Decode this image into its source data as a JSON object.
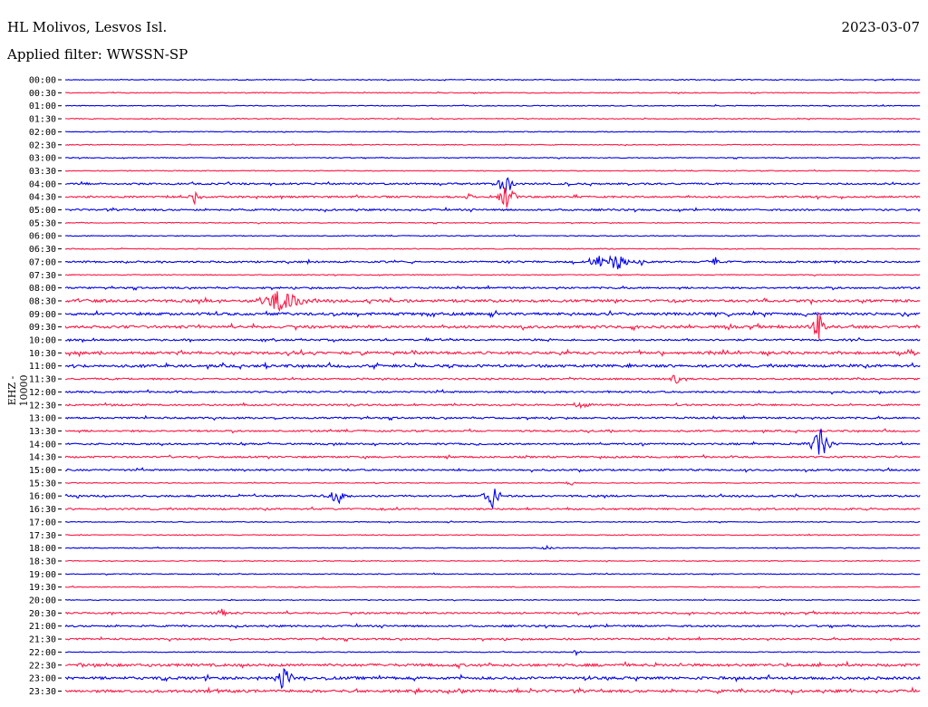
{
  "station": "HL Molivos, Lesvos Isl.",
  "date": "2023-03-07",
  "filter": "Applied filter: WWSSN-SP",
  "ylabel": "EHZ - 10000",
  "colors": {
    "even_trace": "#0000ee",
    "odd_trace": "#ff1744"
  },
  "chart_data": {
    "type": "line",
    "title": "HL Molivos, Lesvos Isl.",
    "ylabel": "EHZ - 10000",
    "tick_labels": [
      "00:00",
      "00:30",
      "01:00",
      "01:30",
      "02:00",
      "02:30",
      "03:00",
      "03:30",
      "04:00",
      "04:30",
      "05:00",
      "05:30",
      "06:00",
      "06:30",
      "07:00",
      "07:30",
      "08:00",
      "08:30",
      "09:00",
      "09:30",
      "10:00",
      "10:30",
      "11:00",
      "11:30",
      "12:00",
      "12:30",
      "13:00",
      "13:30",
      "14:00",
      "14:30",
      "15:00",
      "15:30",
      "16:00",
      "16:30",
      "17:00",
      "17:30",
      "18:00",
      "18:30",
      "19:00",
      "19:30",
      "20:00",
      "20:30",
      "21:00",
      "21:30",
      "22:00",
      "22:30",
      "23:00",
      "23:30"
    ],
    "noise_levels": [
      1,
      1,
      1,
      1,
      1,
      1,
      1,
      1,
      2,
      2,
      2,
      1,
      1,
      1,
      2,
      1,
      2,
      3,
      3,
      3,
      2,
      3,
      3,
      2,
      2,
      2,
      2,
      2,
      2,
      2,
      2,
      1,
      2,
      2,
      1,
      1,
      1,
      1,
      1,
      1,
      1,
      2,
      2,
      2,
      1,
      3,
      3,
      3
    ],
    "events": [
      {
        "row": 8,
        "pos": 0.515,
        "amp": 26,
        "width": 0.004
      },
      {
        "row": 9,
        "pos": 0.151,
        "amp": 10,
        "width": 0.004
      },
      {
        "row": 9,
        "pos": 0.472,
        "amp": 5,
        "width": 0.004
      },
      {
        "row": 9,
        "pos": 0.517,
        "amp": 20,
        "width": 0.006
      },
      {
        "row": 14,
        "pos": 0.623,
        "amp": 9,
        "width": 0.006
      },
      {
        "row": 14,
        "pos": 0.644,
        "amp": 13,
        "width": 0.008
      },
      {
        "row": 14,
        "pos": 0.672,
        "amp": 6,
        "width": 0.003
      },
      {
        "row": 14,
        "pos": 0.758,
        "amp": 8,
        "width": 0.004
      },
      {
        "row": 17,
        "pos": 0.252,
        "amp": 14,
        "width": 0.015
      },
      {
        "row": 17,
        "pos": 0.817,
        "amp": 5,
        "width": 0.004
      },
      {
        "row": 19,
        "pos": 0.881,
        "amp": 24,
        "width": 0.004
      },
      {
        "row": 21,
        "pos": 0.351,
        "amp": 6,
        "width": 0.004
      },
      {
        "row": 23,
        "pos": 0.714,
        "amp": 8,
        "width": 0.004
      },
      {
        "row": 25,
        "pos": 0.604,
        "amp": 6,
        "width": 0.004
      },
      {
        "row": 28,
        "pos": 0.882,
        "amp": 27,
        "width": 0.006
      },
      {
        "row": 31,
        "pos": 0.59,
        "amp": 5,
        "width": 0.003
      },
      {
        "row": 32,
        "pos": 0.317,
        "amp": 20,
        "width": 0.005
      },
      {
        "row": 32,
        "pos": 0.5,
        "amp": 18,
        "width": 0.005
      },
      {
        "row": 36,
        "pos": 0.564,
        "amp": 5,
        "width": 0.003
      },
      {
        "row": 41,
        "pos": 0.183,
        "amp": 4,
        "width": 0.006
      },
      {
        "row": 44,
        "pos": 0.597,
        "amp": 4,
        "width": 0.003
      },
      {
        "row": 46,
        "pos": 0.256,
        "amp": 19,
        "width": 0.005
      }
    ]
  }
}
